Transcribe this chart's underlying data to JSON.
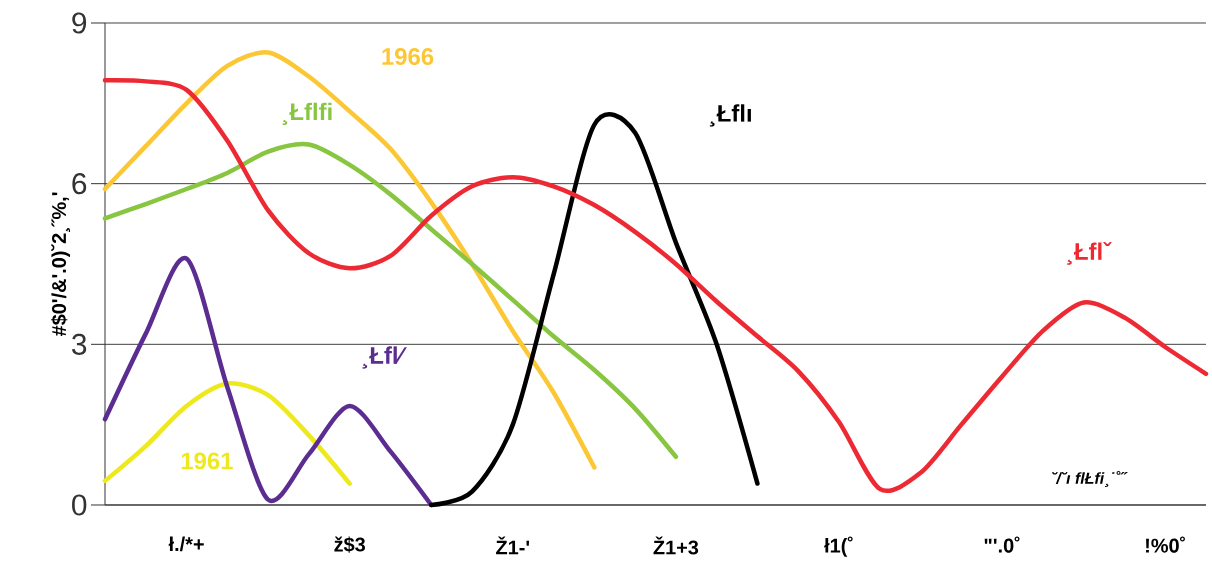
{
  "chart_data": {
    "type": "line",
    "ylabel": "#$0'/&'.0)˘2¸˝%,'",
    "ylim": [
      0,
      9
    ],
    "yticks": [
      0,
      3,
      6,
      9
    ],
    "categories": [
      null,
      null,
      "ł./*+",
      null,
      null,
      null,
      "ž$3",
      null,
      null,
      null,
      "Ž1-'",
      null,
      null,
      null,
      "Ž1+3",
      null,
      null,
      null,
      "ł1(˚",
      null,
      null,
      null,
      "\"'.0˚",
      null,
      null,
      null,
      "!%0˚",
      null
    ],
    "grid": "y",
    "annotations": [
      "˘/˘ı flŁfi¸˙˚˝"
    ],
    "series": [
      {
        "name": "1961",
        "color": "#ede91c",
        "values": [
          0.45,
          1.1,
          1.85,
          2.27,
          2.05,
          1.3,
          0.4,
          null,
          null,
          null,
          null,
          null,
          null,
          null,
          null,
          null,
          null,
          null,
          null,
          null,
          null,
          null,
          null,
          null,
          null,
          null,
          null,
          null
        ]
      },
      {
        "name": "1966",
        "color": "#fcc735",
        "values": [
          5.9,
          6.7,
          7.5,
          8.2,
          8.45,
          8.0,
          7.35,
          6.65,
          5.65,
          4.5,
          3.25,
          2.1,
          0.7,
          null,
          null,
          null,
          null,
          null,
          null,
          null,
          null,
          null,
          null,
          null,
          null,
          null,
          null,
          null
        ]
      },
      {
        "name": "¸Łflfi",
        "color": "#88c540",
        "values": [
          5.35,
          5.62,
          5.9,
          6.2,
          6.6,
          6.73,
          6.35,
          5.8,
          5.15,
          4.5,
          3.83,
          3.15,
          2.52,
          1.8,
          0.9,
          null,
          null,
          null,
          null,
          null,
          null,
          null,
          null,
          null,
          null,
          null,
          null,
          null
        ]
      },
      {
        "name": "¸Łfl⁄",
        "color": "#5c2d91",
        "values": [
          1.6,
          3.2,
          4.6,
          2.2,
          0.1,
          0.95,
          1.85,
          1.0,
          0,
          null,
          null,
          null,
          null,
          null,
          null,
          null,
          null,
          null,
          null,
          null,
          null,
          null,
          null,
          null,
          null,
          null,
          null,
          null
        ]
      },
      {
        "name": "¸Łflı",
        "color": "#000000",
        "values": [
          null,
          null,
          null,
          null,
          null,
          null,
          null,
          null,
          0,
          0.25,
          1.5,
          4.3,
          7.1,
          6.95,
          4.9,
          3.0,
          0.4,
          null,
          null,
          null,
          null,
          null,
          null,
          null,
          null,
          null,
          null,
          null
        ]
      },
      {
        "name": "¸Łflˇ",
        "color": "#ed2a33",
        "values": [
          7.93,
          7.91,
          7.75,
          6.8,
          5.5,
          4.7,
          4.42,
          4.65,
          5.4,
          5.95,
          6.12,
          5.95,
          5.6,
          5.1,
          4.5,
          3.8,
          3.15,
          2.5,
          1.55,
          0.3,
          0.6,
          1.5,
          2.4,
          3.25,
          3.78,
          3.5,
          2.95,
          2.45
        ]
      }
    ]
  }
}
